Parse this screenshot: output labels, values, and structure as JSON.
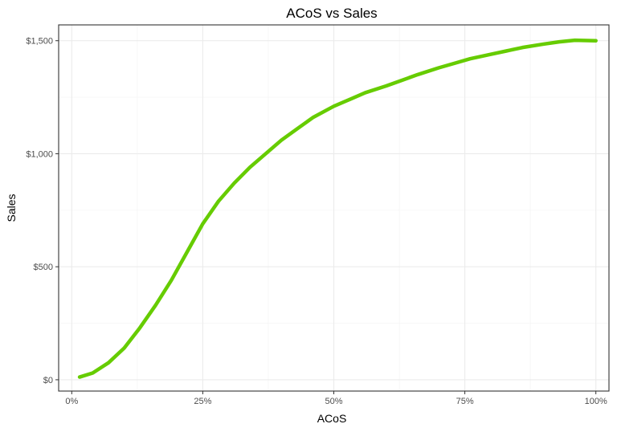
{
  "chart_data": {
    "type": "line",
    "title": "ACoS vs Sales",
    "xlabel": "ACoS",
    "ylabel": "Sales",
    "xlim": [
      -0.025,
      1.025
    ],
    "ylim": [
      -50,
      1570
    ],
    "grid": true,
    "x_ticks": [
      0,
      0.25,
      0.5,
      0.75,
      1.0
    ],
    "x_tick_labels": [
      "0%",
      "25%",
      "50%",
      "75%",
      "100%"
    ],
    "y_ticks": [
      0,
      500,
      1000,
      1500
    ],
    "y_tick_labels": [
      "$0",
      "$500",
      "$1,000",
      "$1,500"
    ],
    "series": [
      {
        "color": "#66cc00",
        "x": [
          0.015,
          0.04,
          0.07,
          0.1,
          0.13,
          0.16,
          0.19,
          0.22,
          0.25,
          0.28,
          0.31,
          0.34,
          0.37,
          0.4,
          0.43,
          0.46,
          0.5,
          0.53,
          0.56,
          0.6,
          0.63,
          0.66,
          0.7,
          0.73,
          0.76,
          0.8,
          0.83,
          0.86,
          0.9,
          0.93,
          0.96,
          1.0
        ],
        "y": [
          12,
          30,
          75,
          140,
          230,
          330,
          440,
          565,
          690,
          790,
          870,
          940,
          1000,
          1060,
          1110,
          1160,
          1210,
          1240,
          1270,
          1300,
          1325,
          1350,
          1380,
          1400,
          1420,
          1440,
          1455,
          1470,
          1485,
          1495,
          1502,
          1500
        ]
      }
    ]
  }
}
